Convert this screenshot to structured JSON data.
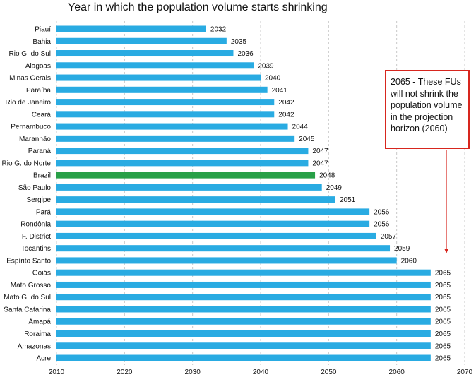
{
  "chart_data": {
    "type": "bar",
    "orientation": "horizontal",
    "title": "Year in which the population volume starts shrinking",
    "xlim": [
      2010,
      2070
    ],
    "xticks": [
      2010,
      2020,
      2030,
      2040,
      2050,
      2060,
      2070
    ],
    "grid": "vertical dashed",
    "colors": {
      "default": "#29abe2",
      "highlight": "#28a047",
      "annotation": "#d7261e"
    },
    "highlight_category": "Brazil",
    "categories": [
      "Piauí",
      "Bahia",
      "Rio G. do Sul",
      "Alagoas",
      "Minas Gerais",
      "Paraíba",
      "Rio de Janeiro",
      "Ceará",
      "Pernambuco",
      "Maranhão",
      "Paraná",
      "Rio G. do Norte",
      "Brazil",
      "São Paulo",
      "Sergipe",
      "Pará",
      "Rondônia",
      "F. District",
      "Tocantins",
      "Espírito Santo",
      "Goiás",
      "Mato Grosso",
      "Mato G. do Sul",
      "Santa Catarina",
      "Amapá",
      "Roraima",
      "Amazonas",
      "Acre"
    ],
    "values": [
      2032,
      2035,
      2036,
      2039,
      2040,
      2041,
      2042,
      2042,
      2044,
      2045,
      2047,
      2047,
      2048,
      2049,
      2051,
      2056,
      2056,
      2057,
      2059,
      2060,
      2065,
      2065,
      2065,
      2065,
      2065,
      2065,
      2065,
      2065
    ],
    "annotation": {
      "text": "2065 - These FUs will not shrink the population volume in the projection horizon (2060)",
      "points_to_value": 2067
    }
  }
}
